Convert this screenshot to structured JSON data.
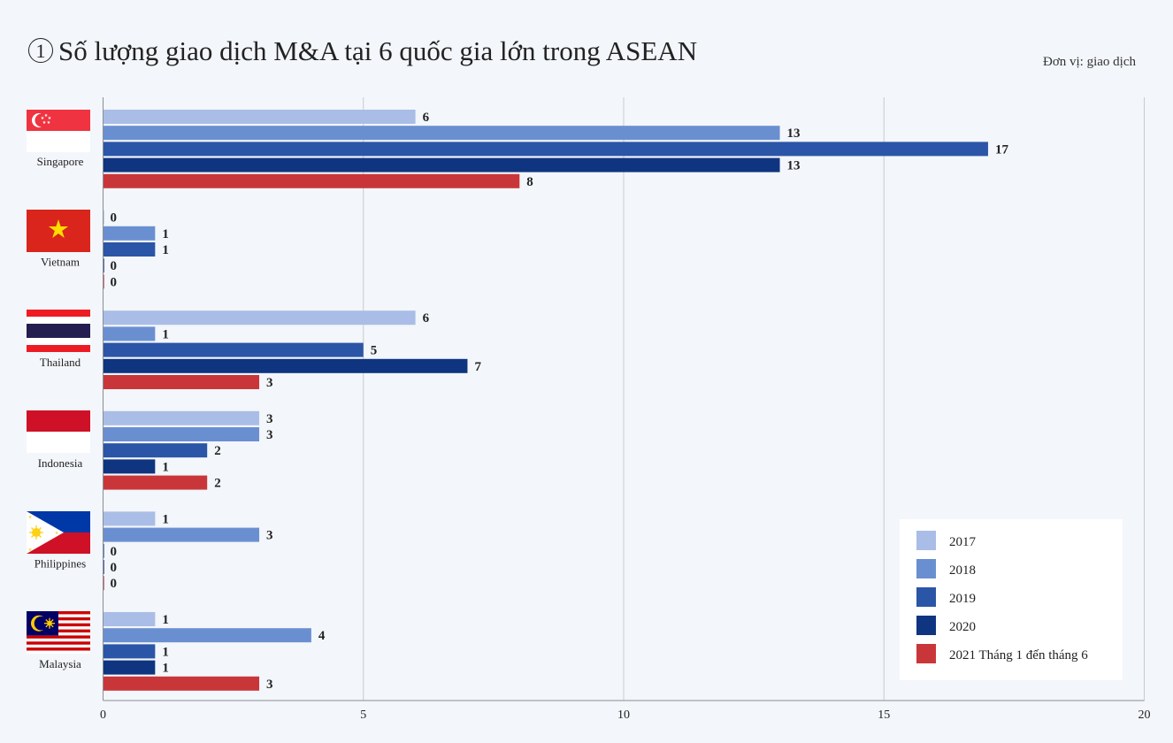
{
  "header": {
    "number": "1",
    "title": "Số lượng giao dịch M&A tại 6 quốc gia lớn trong ASEAN",
    "unit": "Đơn vị: giao dịch"
  },
  "chart_data": {
    "type": "bar",
    "orientation": "horizontal",
    "title": "Số lượng giao dịch M&A tại 6 quốc gia lớn trong ASEAN",
    "unit": "Đơn vị: giao dịch",
    "categories": [
      "Singapore",
      "Vietnam",
      "Thailand",
      "Indonesia",
      "Philippines",
      "Malaysia"
    ],
    "series": [
      {
        "name": "2017",
        "color": "#a9bde6",
        "values": [
          6,
          0,
          6,
          3,
          1,
          1
        ]
      },
      {
        "name": "2018",
        "color": "#6a8fd1",
        "values": [
          13,
          1,
          1,
          3,
          3,
          4
        ]
      },
      {
        "name": "2019",
        "color": "#2b55a6",
        "values": [
          17,
          1,
          5,
          2,
          0,
          1
        ]
      },
      {
        "name": "2020",
        "color": "#0f3480",
        "values": [
          13,
          0,
          7,
          1,
          0,
          1
        ]
      },
      {
        "name": "2021 Tháng 1 đến tháng 6",
        "color": "#c93639",
        "values": [
          8,
          0,
          3,
          2,
          0,
          3
        ]
      }
    ],
    "xlim": [
      0,
      20
    ],
    "xticks": [
      0,
      5,
      10,
      15,
      20
    ],
    "grid": true,
    "legend": "bottom-right",
    "flags": [
      "singapore-flag-icon",
      "vietnam-flag-icon",
      "thailand-flag-icon",
      "indonesia-flag-icon",
      "philippines-flag-icon",
      "malaysia-flag-icon"
    ]
  }
}
